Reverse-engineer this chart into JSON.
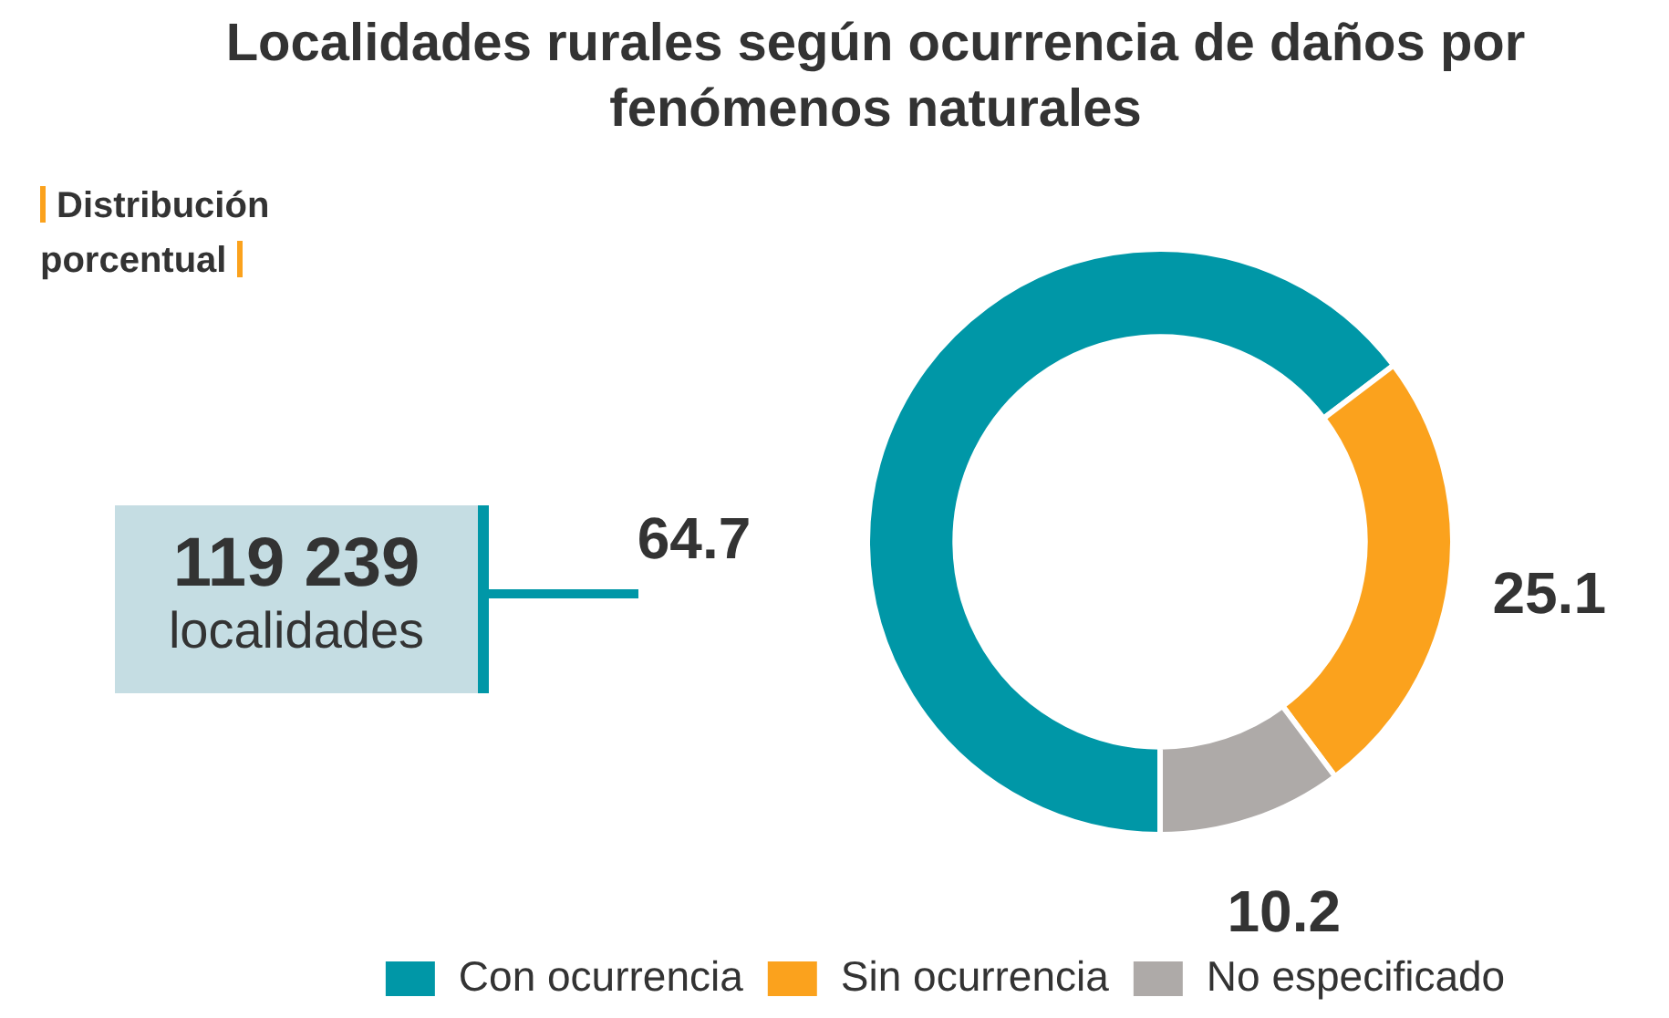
{
  "chart_data": {
    "type": "donut",
    "title": "Localidades rurales según ocurrencia de daños por fenómenos naturales",
    "subtitle": "Distribución porcentual",
    "annotations": [
      "119 239",
      "localidades"
    ],
    "categories": [
      "Con ocurrencia",
      "Sin ocurrencia",
      "No especificado"
    ],
    "values": [
      64.7,
      25.1,
      10.2
    ],
    "colors": [
      "#0097a7",
      "#fba21d",
      "#aeaaa8"
    ],
    "data_labels": true,
    "legend": "bottom"
  }
}
